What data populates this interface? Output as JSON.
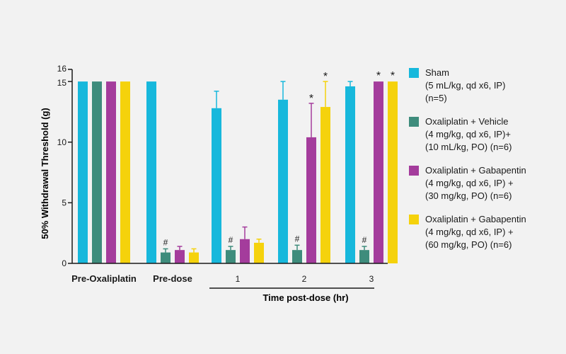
{
  "chart_data": {
    "type": "bar",
    "ylabel": "50% Withdrawal Threshold (g)",
    "xlabel": "Time post-dose (hr)",
    "ylim": [
      0,
      16
    ],
    "yticks": [
      0,
      5,
      10,
      15,
      16
    ],
    "categories": [
      "Pre-Oxaliplatin",
      "Pre-dose",
      "1",
      "2",
      "3"
    ],
    "bold_categories": [
      "Pre-Oxaliplatin",
      "Pre-dose"
    ],
    "bracket_categories": [
      "1",
      "2",
      "3"
    ],
    "series": [
      {
        "name": "Sham",
        "legend_lines": [
          "Sham",
          "(5 mL/kg, qd x6, IP)",
          "(n=5)"
        ],
        "color": "#17b8dc",
        "values": [
          15.0,
          15.0,
          12.8,
          13.5,
          14.6
        ],
        "errors": [
          0,
          0,
          1.4,
          1.5,
          0.4
        ],
        "markers": [
          "",
          "",
          "",
          "",
          ""
        ]
      },
      {
        "name": "Oxaliplatin + Vehicle",
        "legend_lines": [
          "Oxaliplatin + Vehicle",
          "(4 mg/kg, qd x6, IP)+",
          "(10 mL/kg, PO) (n=6)"
        ],
        "color": "#3e8c7c",
        "values": [
          15.0,
          0.9,
          1.1,
          1.1,
          1.1
        ],
        "errors": [
          0,
          0.3,
          0.3,
          0.4,
          0.3
        ],
        "markers": [
          "",
          "#",
          "#",
          "#",
          "#"
        ]
      },
      {
        "name": "Oxaliplatin + Gabapentin",
        "legend_lines": [
          "Oxaliplatin + Gabapentin",
          "(4 mg/kg, qd x6, IP) +",
          "(30 mg/kg, PO) (n=6)"
        ],
        "color": "#a43c9c",
        "values": [
          15.0,
          1.1,
          2.0,
          10.4,
          15.0
        ],
        "errors": [
          0,
          0.3,
          1.0,
          2.8,
          0
        ],
        "markers": [
          "",
          "",
          "",
          "*",
          "*"
        ]
      },
      {
        "name": "Oxaliplatin + Gabapentin",
        "legend_lines": [
          "Oxaliplatin + Gabapentin",
          "(4 mg/kg, qd x6, IP) +",
          "(60 mg/kg, PO) (n=6)"
        ],
        "color": "#f5d20c",
        "values": [
          15.0,
          0.9,
          1.7,
          12.9,
          15.0
        ],
        "errors": [
          0,
          0.3,
          0.3,
          2.1,
          0
        ],
        "markers": [
          "",
          "",
          "",
          "*",
          "*"
        ]
      }
    ],
    "legend_position": "right",
    "grid": false
  }
}
